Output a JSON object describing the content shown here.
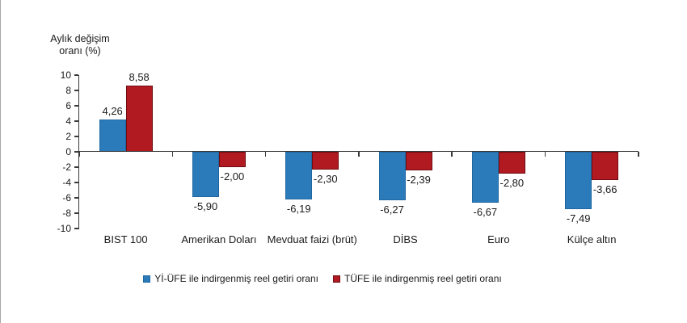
{
  "chart_data": {
    "type": "bar",
    "ylabel": "Aylık değişim oranı (%)",
    "ylabel_lines": [
      "Aylık değişim",
      "oranı (%)"
    ],
    "categories": [
      "BIST 100",
      "Amerikan Doları",
      "Mevduat faizi (brüt)",
      "DİBS",
      "Euro",
      "Külçe altın"
    ],
    "series": [
      {
        "name": "Yİ-ÜFE ile indirgenmiş reel getiri oranı",
        "color": "#2b7bba",
        "border_color": "#2167a0",
        "values": [
          4.26,
          -5.9,
          -6.19,
          -6.27,
          -6.67,
          -7.49
        ],
        "labels": [
          "4,26",
          "-5,90",
          "-6,19",
          "-6,27",
          "-6,67",
          "-7,49"
        ]
      },
      {
        "name": "TÜFE ile indirgenmiş reel getiri oranı",
        "color": "#b11a21",
        "border_color": "#6e0d12",
        "values": [
          8.58,
          -2.0,
          -2.3,
          -2.39,
          -2.8,
          -3.66
        ],
        "labels": [
          "8,58",
          "-2,00",
          "-2,30",
          "-2,39",
          "-2,80",
          "-3,66"
        ]
      }
    ],
    "ylim": [
      -10,
      10
    ],
    "yticks": [
      10,
      8,
      6,
      4,
      2,
      0,
      -2,
      -4,
      -6,
      -8,
      -10
    ],
    "grid": false,
    "legend_position": "bottom",
    "axis_color": "#3a3a3a",
    "text_color": "#1a1a1a"
  }
}
